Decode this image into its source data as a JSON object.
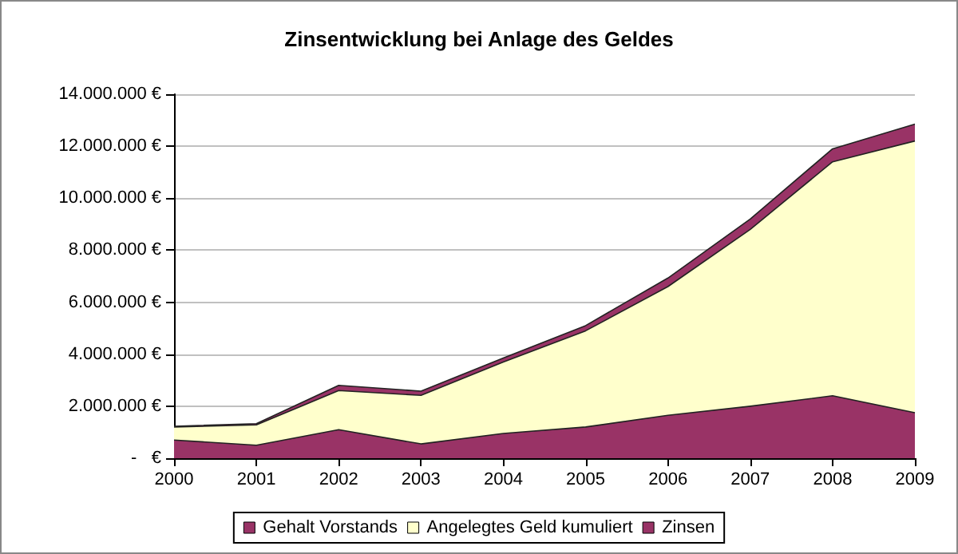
{
  "chart_data": {
    "type": "area",
    "title": "Zinsentwicklung bei Anlage des Geldes",
    "stacked": true,
    "categories": [
      "2000",
      "2001",
      "2002",
      "2003",
      "2004",
      "2005",
      "2006",
      "2007",
      "2008",
      "2009"
    ],
    "series": [
      {
        "name": "Gehalt Vorstands",
        "color": "#993366",
        "values": [
          700000,
          500000,
          1100000,
          550000,
          950000,
          1200000,
          1650000,
          2000000,
          2400000,
          1750000
        ]
      },
      {
        "name": "Angelegtes Geld kumuliert",
        "color": "#ffffcc",
        "values": [
          500000,
          780000,
          1500000,
          1870000,
          2750000,
          3700000,
          4950000,
          6800000,
          9000000,
          10450000
        ]
      },
      {
        "name": "Zinsen",
        "color": "#993366",
        "values": [
          30000,
          50000,
          200000,
          160000,
          150000,
          200000,
          330000,
          400000,
          500000,
          650000
        ]
      }
    ],
    "ylim": [
      0,
      14000000
    ],
    "yticks": [
      {
        "value": 0,
        "label": "-   €"
      },
      {
        "value": 2000000,
        "label": "2.000.000 €"
      },
      {
        "value": 4000000,
        "label": "4.000.000 €"
      },
      {
        "value": 6000000,
        "label": "6.000.000 €"
      },
      {
        "value": 8000000,
        "label": "8.000.000 €"
      },
      {
        "value": 10000000,
        "label": "10.000.000 €"
      },
      {
        "value": 12000000,
        "label": "12.000.000 €"
      },
      {
        "value": 14000000,
        "label": "14.000.000 €"
      }
    ],
    "grid": "y",
    "legend": "bottom"
  }
}
